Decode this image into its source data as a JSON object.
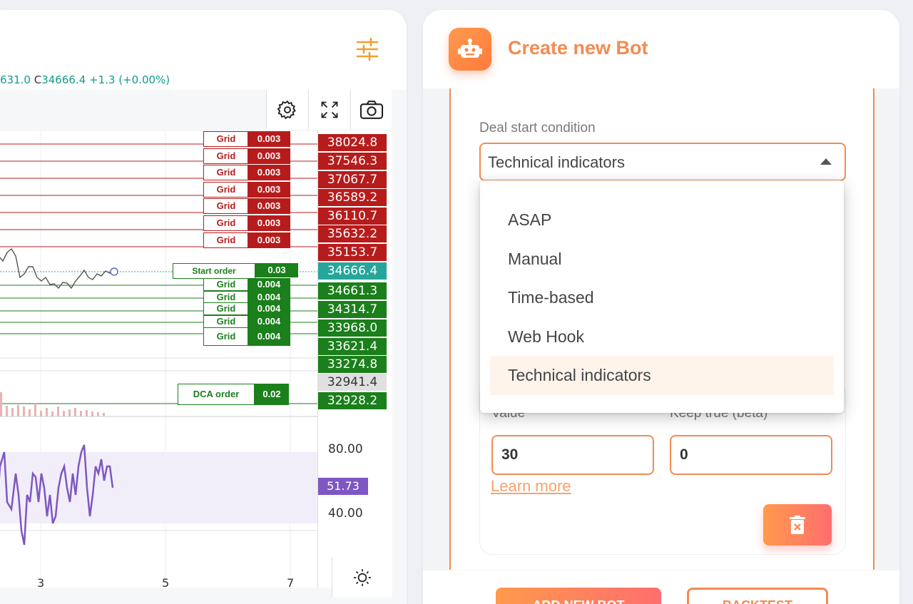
{
  "chart": {
    "ohlc_text_pre": "631.0",
    "ohlc_c_label": "C",
    "ohlc_text_post": "34666.4  +1.3 (+0.00%)",
    "sell_grid": [
      {
        "label": "Grid",
        "qty": "0.003",
        "price": "38024.8"
      },
      {
        "label": "Grid",
        "qty": "0.003",
        "price": "37546.3"
      },
      {
        "label": "Grid",
        "qty": "0.003",
        "price": "37067.7"
      },
      {
        "label": "Grid",
        "qty": "0.003",
        "price": "36589.2"
      },
      {
        "label": "Grid",
        "qty": "0.003",
        "price": "36110.7"
      },
      {
        "label": "Grid",
        "qty": "0.003",
        "price": "35632.2"
      },
      {
        "label": "Grid",
        "qty": "0.003",
        "price": "35153.7"
      }
    ],
    "start_order": {
      "label": "Start order",
      "qty": "0.03",
      "price": "34666.4"
    },
    "buy_grid": [
      {
        "label": "Grid",
        "qty": "0.004",
        "price": "34661.3"
      },
      {
        "label": "Grid",
        "qty": "0.004",
        "price": "34314.7"
      },
      {
        "label": "Grid",
        "qty": "0.004",
        "price": "33968.0"
      },
      {
        "label": "Grid",
        "qty": "0.004",
        "price": "33621.4"
      },
      {
        "label": "Grid",
        "qty": "0.004",
        "price": "33274.8"
      }
    ],
    "mid_price": "32941.4",
    "dca_order": {
      "label": "DCA order",
      "qty": "0.02",
      "price": "32928.2"
    },
    "rsi": {
      "value": "51.73",
      "upper": "80.00",
      "lower": "40.00"
    },
    "x_ticks": [
      "3",
      "5",
      "7"
    ],
    "colors": {
      "sell": "#b71c1c",
      "buy": "#1b7f1b",
      "current": "#26a69a",
      "rsi": "#7e57c2"
    }
  },
  "bot": {
    "title": "Create new Bot",
    "deal_start_label": "Deal start condition",
    "deal_start_value": "Technical indicators",
    "dropdown_options": [
      "ASAP",
      "Manual",
      "Time-based",
      "Web Hook",
      "Technical indicators"
    ],
    "selected_option": "Technical indicators",
    "value_label": "Value",
    "value_input": "30",
    "keep_true_label": "Keep true (beta)",
    "keep_true_input": "0",
    "learn_more": "Learn more",
    "add_button": "ADD NEW BOT",
    "backtest_button": "BACKTEST",
    "accent_color": "#f28b52"
  }
}
